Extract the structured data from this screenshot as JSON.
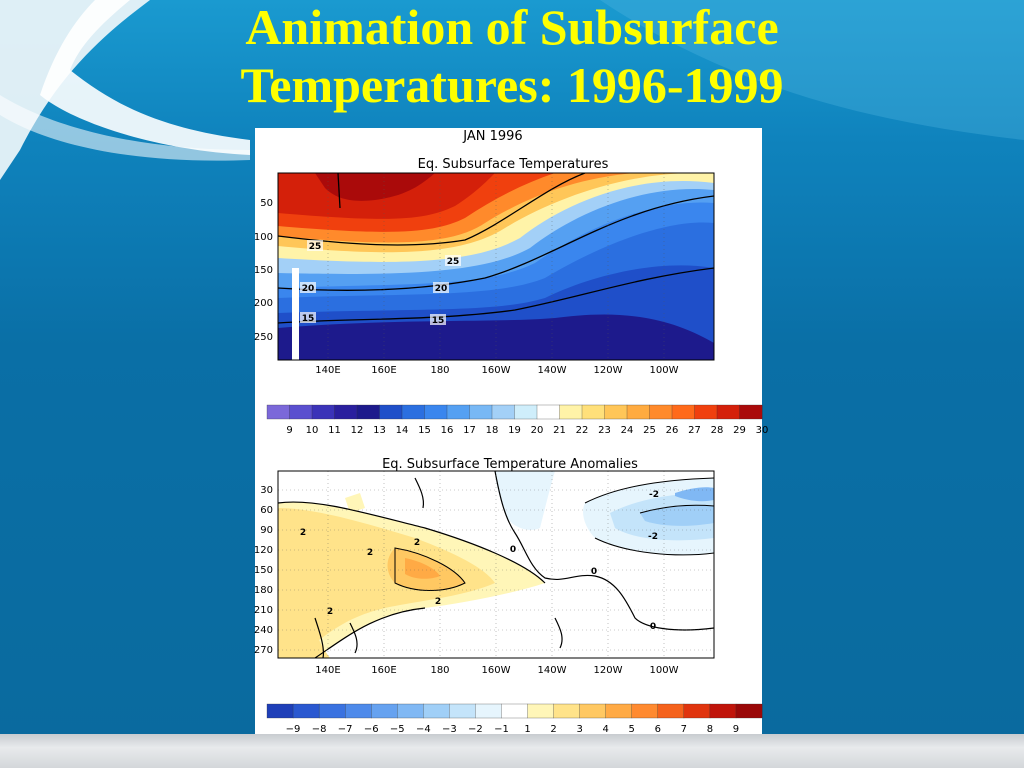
{
  "slide": {
    "title_line1": "Animation of Subsurface",
    "title_line2": "Temperatures: 1996-1999"
  },
  "figure": {
    "frame_label": "JAN 1996",
    "top_plot": {
      "title": "Eq. Subsurface Temperatures",
      "y_ticks": [
        "50",
        "100",
        "150",
        "200",
        "250"
      ],
      "x_ticks": [
        "140E",
        "160E",
        "180",
        "160W",
        "140W",
        "120W",
        "100W"
      ],
      "contour_labels": [
        "25",
        "25",
        "20",
        "20",
        "15",
        "15"
      ]
    },
    "top_colorbar": {
      "ticks": [
        "9",
        "10",
        "11",
        "12",
        "13",
        "14",
        "15",
        "16",
        "17",
        "18",
        "19",
        "20",
        "21",
        "22",
        "23",
        "24",
        "25",
        "26",
        "27",
        "28",
        "29",
        "30"
      ],
      "colors": [
        "#7b68d9",
        "#5a4fcf",
        "#3b33b8",
        "#2a1f9e",
        "#1d1a8c",
        "#1f4fc9",
        "#2b6fe0",
        "#3a86ee",
        "#55a0f2",
        "#78b8f5",
        "#a3d0f7",
        "#cfeefb",
        "#ffffff",
        "#fff3a8",
        "#ffe07a",
        "#ffc658",
        "#ffab40",
        "#ff8a2b",
        "#ff6a1a",
        "#f0400e",
        "#d4200a",
        "#aa0a0a"
      ]
    },
    "bottom_plot": {
      "title": "Eq. Subsurface Temperature Anomalies",
      "y_ticks": [
        "30",
        "60",
        "90",
        "120",
        "150",
        "180",
        "210",
        "240",
        "270"
      ],
      "x_ticks": [
        "140E",
        "160E",
        "180",
        "160W",
        "140W",
        "120W",
        "100W"
      ],
      "contour_labels": [
        "2",
        "2",
        "2",
        "2",
        "2",
        "0",
        "0",
        "0",
        "-2",
        "-2"
      ]
    },
    "bottom_colorbar": {
      "ticks": [
        "−9",
        "−8",
        "−7",
        "−6",
        "−5",
        "−4",
        "−3",
        "−2",
        "−1",
        "1",
        "2",
        "3",
        "4",
        "5",
        "6",
        "7",
        "8",
        "9"
      ],
      "colors": [
        "#1f3fb8",
        "#2a58d0",
        "#3a72e0",
        "#4e8aea",
        "#66a2f0",
        "#80b8f4",
        "#a0cff7",
        "#c4e4fa",
        "#e6f5fd",
        "#ffffff",
        "#fff6b8",
        "#ffe38a",
        "#ffc862",
        "#ffaa45",
        "#ff8a30",
        "#f5621c",
        "#e0340e",
        "#c0140a",
        "#9a0808"
      ]
    }
  }
}
